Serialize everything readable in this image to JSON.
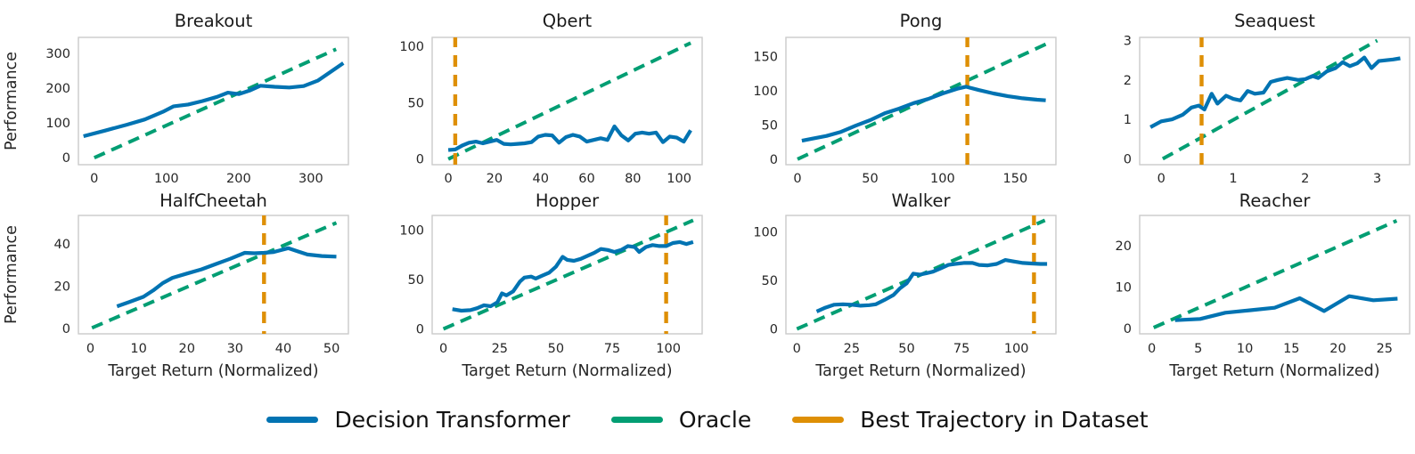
{
  "style": {
    "dt_color": "#0173b2",
    "oracle_color": "#029e73",
    "best_color": "#de8f05",
    "axis_color": "#cbcbcb",
    "text_color": "#262626",
    "title_color": "#1a1a1a"
  },
  "legend": {
    "position": "bottom-center",
    "items": [
      {
        "label": "Decision Transformer",
        "color": "#0173b2",
        "style": "solid"
      },
      {
        "label": "Oracle",
        "color": "#029e73",
        "style": "dashed"
      },
      {
        "label": "Best Trajectory in Dataset",
        "color": "#de8f05",
        "style": "dashed"
      }
    ]
  },
  "chart_data": [
    {
      "type": "line",
      "title": "Breakout",
      "row": 0,
      "col": 0,
      "ylabel": "Performance",
      "xlabel": null,
      "grid": false,
      "xlim": [
        -22,
        352
      ],
      "ylim": [
        -20,
        346
      ],
      "xticks": [
        0,
        100,
        200,
        300
      ],
      "yticks": [
        0,
        100,
        200,
        300
      ],
      "oracle": {
        "x": [
          0,
          335
        ],
        "y": [
          0,
          312
        ]
      },
      "best_trajectory_x": null,
      "dt": {
        "x": [
          -15,
          15,
          45,
          70,
          95,
          110,
          130,
          150,
          170,
          185,
          200,
          215,
          230,
          250,
          270,
          290,
          310,
          345
        ],
        "y": [
          62,
          78,
          95,
          110,
          132,
          148,
          153,
          163,
          175,
          187,
          183,
          193,
          207,
          204,
          202,
          206,
          222,
          272
        ]
      }
    },
    {
      "type": "line",
      "title": "Qbert",
      "row": 0,
      "col": 1,
      "ylabel": null,
      "xlabel": null,
      "grid": false,
      "xlim": [
        -7,
        110
      ],
      "ylim": [
        -5,
        108
      ],
      "xticks": [
        0,
        20,
        40,
        60,
        80,
        100
      ],
      "yticks": [
        0,
        50,
        100
      ],
      "oracle": {
        "x": [
          0,
          105
        ],
        "y": [
          0,
          103
        ]
      },
      "best_trajectory_x": 3,
      "dt": {
        "x": [
          0,
          3,
          6,
          9,
          12,
          15,
          18,
          21,
          24,
          27,
          30,
          33,
          36,
          39,
          42,
          45,
          48,
          51,
          54,
          57,
          60,
          63,
          66,
          69,
          72,
          75,
          78,
          81,
          84,
          87,
          90,
          93,
          96,
          99,
          102,
          105
        ],
        "y": [
          8,
          8.5,
          12,
          14.5,
          15.5,
          14,
          15.5,
          17,
          13.5,
          13,
          13.5,
          14,
          15,
          20,
          21.5,
          21,
          14.5,
          19.5,
          21.5,
          20,
          15.5,
          17,
          18.5,
          17,
          29,
          21,
          16.5,
          22.5,
          23.5,
          22.5,
          23.5,
          15,
          20,
          19,
          15.5,
          25.5
        ]
      }
    },
    {
      "type": "line",
      "title": "Pong",
      "row": 0,
      "col": 2,
      "ylabel": null,
      "xlabel": null,
      "grid": false,
      "xlim": [
        -8,
        178
      ],
      "ylim": [
        -8,
        178
      ],
      "xticks": [
        0,
        50,
        100,
        150
      ],
      "yticks": [
        0,
        50,
        100,
        150
      ],
      "oracle": {
        "x": [
          0,
          172
        ],
        "y": [
          0,
          169
        ]
      },
      "best_trajectory_x": 117,
      "dt": {
        "x": [
          3,
          10,
          20,
          30,
          40,
          50,
          60,
          70,
          80,
          90,
          100,
          110,
          116,
          125,
          135,
          145,
          155,
          165,
          171
        ],
        "y": [
          27,
          30,
          34,
          40,
          49,
          57,
          67,
          74,
          82,
          88,
          96,
          103,
          106,
          101,
          96,
          92,
          89,
          87,
          86
        ]
      }
    },
    {
      "type": "line",
      "title": "Seaquest",
      "row": 0,
      "col": 3,
      "ylabel": null,
      "xlabel": null,
      "grid": false,
      "xlim": [
        -0.3,
        3.45
      ],
      "ylim": [
        -0.15,
        3.08
      ],
      "xticks": [
        0,
        1,
        2,
        3
      ],
      "yticks": [
        0,
        1,
        2,
        3
      ],
      "oracle": {
        "x": [
          0.02,
          3.0
        ],
        "y": [
          0,
          3.0
        ]
      },
      "best_trajectory_x": 0.56,
      "dt": {
        "x": [
          -0.15,
          0.0,
          0.15,
          0.3,
          0.42,
          0.52,
          0.6,
          0.7,
          0.78,
          0.9,
          1.0,
          1.1,
          1.2,
          1.3,
          1.42,
          1.52,
          1.62,
          1.75,
          1.9,
          2.0,
          2.1,
          2.18,
          2.3,
          2.42,
          2.52,
          2.62,
          2.72,
          2.82,
          2.92,
          3.02,
          3.12,
          3.22,
          3.32
        ],
        "y": [
          0.8,
          0.95,
          1.0,
          1.12,
          1.3,
          1.35,
          1.25,
          1.65,
          1.4,
          1.6,
          1.52,
          1.48,
          1.72,
          1.65,
          1.68,
          1.95,
          2.0,
          2.05,
          2.0,
          2.02,
          2.1,
          2.05,
          2.22,
          2.3,
          2.45,
          2.35,
          2.42,
          2.57,
          2.3,
          2.48,
          2.5,
          2.52,
          2.55
        ]
      }
    },
    {
      "type": "line",
      "title": "HalfCheetah",
      "row": 1,
      "col": 0,
      "ylabel": "Performance",
      "xlabel": "Target Return (Normalized)",
      "grid": false,
      "xlim": [
        -2.5,
        53.5
      ],
      "ylim": [
        -2.5,
        53.5
      ],
      "xticks": [
        0,
        10,
        20,
        30,
        40,
        50
      ],
      "yticks": [
        0,
        20,
        40
      ],
      "oracle": {
        "x": [
          0.3,
          51
        ],
        "y": [
          0.3,
          50
        ]
      },
      "best_trajectory_x": 36,
      "dt": {
        "x": [
          5.5,
          8,
          11,
          13,
          15,
          17,
          20,
          23,
          26,
          29,
          32,
          34,
          36,
          38,
          41,
          43,
          45,
          48,
          51
        ],
        "y": [
          10.5,
          12.5,
          15,
          18,
          21.5,
          24,
          26,
          28,
          30.5,
          33,
          35.8,
          35.6,
          35.8,
          36.2,
          38,
          36.5,
          35,
          34.3,
          34
        ]
      }
    },
    {
      "type": "line",
      "title": "Hopper",
      "row": 1,
      "col": 1,
      "ylabel": null,
      "xlabel": "Target Return (Normalized)",
      "grid": false,
      "xlim": [
        -5,
        115
      ],
      "ylim": [
        -5,
        115
      ],
      "xticks": [
        0,
        25,
        50,
        75,
        100
      ],
      "yticks": [
        0,
        50,
        100
      ],
      "oracle": {
        "x": [
          0,
          111
        ],
        "y": [
          0,
          110
        ]
      },
      "best_trajectory_x": 99,
      "dt": {
        "x": [
          4,
          8,
          12,
          15,
          18,
          21,
          24,
          26,
          28,
          31,
          34,
          36,
          39,
          41,
          44,
          47,
          50,
          53,
          55,
          58,
          61,
          64,
          67,
          70,
          73,
          76,
          79,
          82,
          85,
          87,
          90,
          93,
          96,
          99,
          102,
          105,
          108,
          111
        ],
        "y": [
          20,
          18.5,
          19,
          21,
          24,
          23,
          27,
          36,
          34,
          38,
          48,
          52,
          53,
          51,
          54,
          57,
          63,
          73,
          70,
          69,
          71,
          74,
          77,
          81,
          80,
          78,
          80,
          84,
          83,
          78,
          83,
          85,
          84,
          84,
          87,
          88,
          86,
          88
        ]
      }
    },
    {
      "type": "line",
      "title": "Walker",
      "row": 1,
      "col": 2,
      "ylabel": null,
      "xlabel": "Target Return (Normalized)",
      "grid": false,
      "xlim": [
        -5,
        118
      ],
      "ylim": [
        -5,
        117
      ],
      "xticks": [
        0,
        25,
        50,
        75,
        100
      ],
      "yticks": [
        0,
        50,
        100
      ],
      "oracle": {
        "x": [
          0,
          113
        ],
        "y": [
          0,
          112
        ]
      },
      "best_trajectory_x": 108,
      "dt": {
        "x": [
          9,
          13,
          17,
          21,
          25,
          29,
          33,
          36,
          40,
          44,
          47,
          50,
          53,
          56,
          59,
          62,
          66,
          69,
          72,
          76,
          80,
          83,
          87,
          91,
          95,
          99,
          103,
          107,
          111,
          114
        ],
        "y": [
          18,
          22,
          25,
          25.5,
          25,
          24,
          24.5,
          25.5,
          30,
          35,
          42,
          47,
          57,
          56,
          57.5,
          59,
          63,
          66,
          67,
          68,
          68,
          66,
          65.5,
          67,
          71,
          69.5,
          68,
          67.5,
          67,
          67
        ]
      }
    },
    {
      "type": "line",
      "title": "Reacher",
      "row": 1,
      "col": 3,
      "ylabel": null,
      "xlabel": "Target Return (Normalized)",
      "grid": false,
      "xlim": [
        -1.3,
        27.7
      ],
      "ylim": [
        -1.3,
        27.3
      ],
      "xticks": [
        0,
        5,
        10,
        15,
        20,
        25
      ],
      "yticks": [
        0,
        10,
        20
      ],
      "oracle": {
        "x": [
          0.2,
          26.3
        ],
        "y": [
          0.2,
          26
        ]
      },
      "best_trajectory_x": null,
      "dt": {
        "x": [
          2.5,
          5.2,
          7.9,
          10.6,
          13.2,
          15.9,
          18.5,
          21.2,
          23.8,
          26.4
        ],
        "y": [
          2.0,
          2.3,
          3.8,
          4.4,
          5.0,
          7.3,
          4.2,
          7.8,
          6.8,
          7.2
        ]
      }
    }
  ]
}
